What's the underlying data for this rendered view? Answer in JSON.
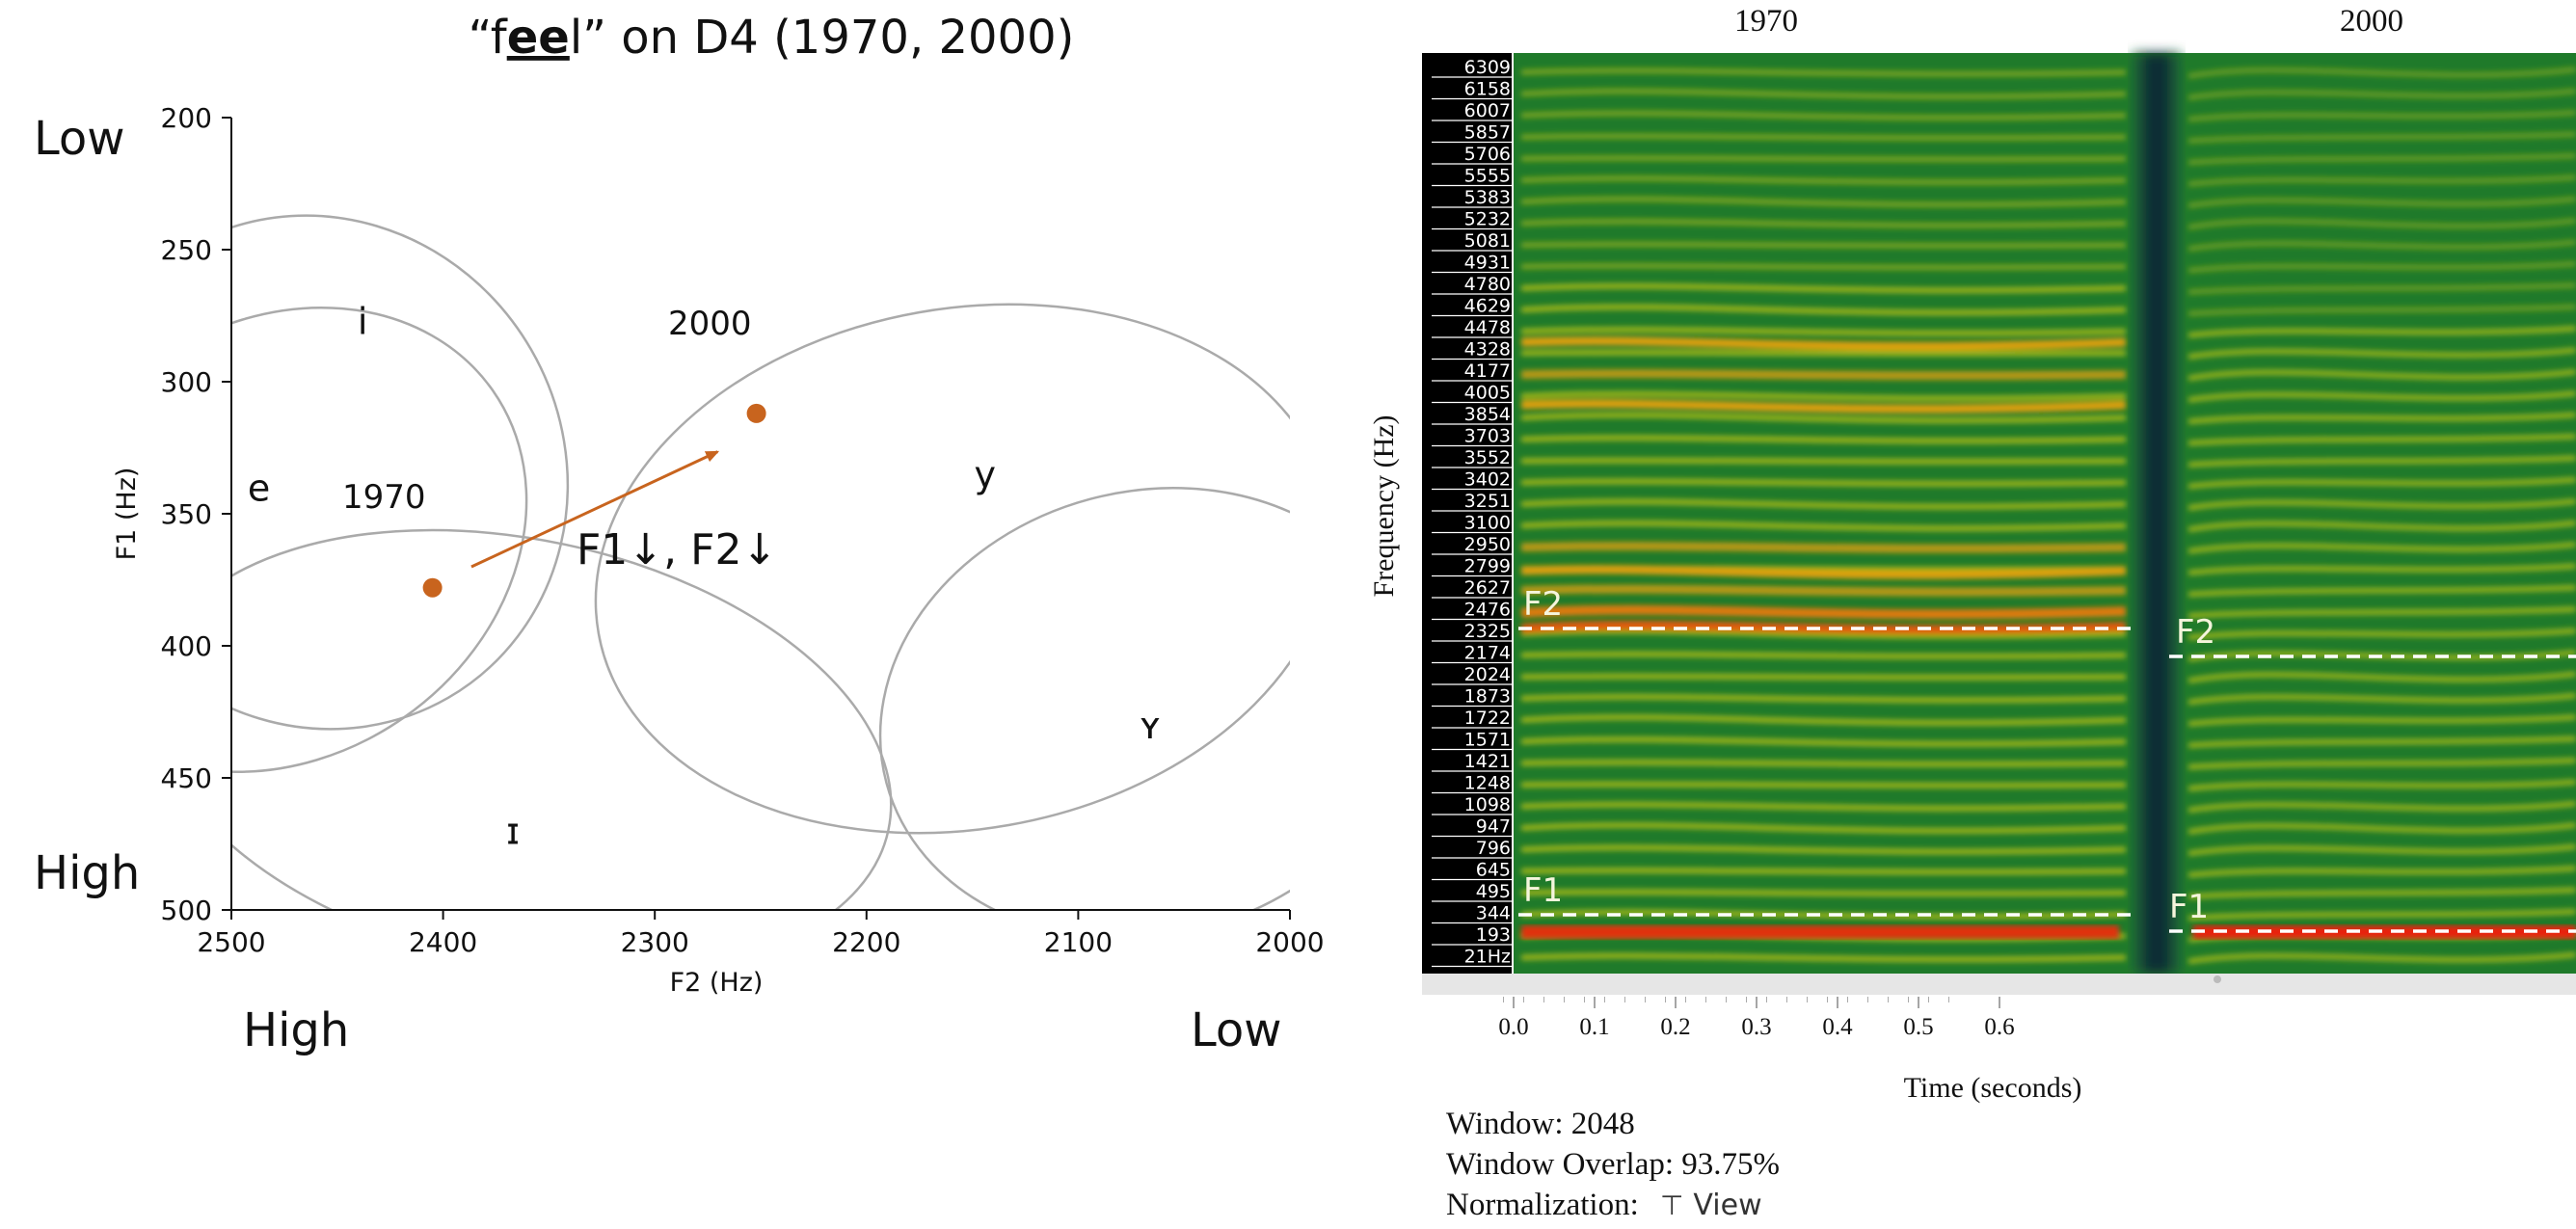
{
  "left": {
    "title_parts": {
      "prefix": "“f",
      "bold": "ee",
      "suffix": "l” on D4 (1970, 2000)"
    },
    "corner_words": {
      "top_left": "Low",
      "left_bottom": "High",
      "bottom_left": "High",
      "bottom_right": "Low"
    },
    "annotations": {
      "label_2000": "2000",
      "label_1970": "1970",
      "arrow_text": "F1↓, F2↓"
    },
    "vowels": [
      "i",
      "e",
      "y",
      "ɪ",
      "ʏ"
    ],
    "arrow_color": "#c8641e",
    "ellipse_color": "#aaaaaa"
  },
  "chart_data": [
    {
      "type": "scatter",
      "title": "“feel” on D4 (1970, 2000)",
      "xlabel": "F2 (Hz)",
      "ylabel": "F1 (Hz)",
      "xlim": [
        2500,
        2000
      ],
      "ylim": [
        500,
        200
      ],
      "x_ticks": [
        "2500",
        "2400",
        "2300",
        "2200",
        "2100",
        "2000"
      ],
      "y_ticks": [
        "200",
        "250",
        "300",
        "350",
        "400",
        "450",
        "500"
      ],
      "x_inverted": true,
      "y_inverted": true,
      "points": [
        {
          "label": "1970",
          "F2": 2405,
          "F1": 378
        },
        {
          "label": "2000",
          "F2": 2252,
          "F1": 312
        }
      ],
      "vowel_labels": [
        {
          "text": "i",
          "F2": 2438,
          "F1": 282
        },
        {
          "text": "e",
          "F2": 2487,
          "F1": 345
        },
        {
          "text": "y",
          "F2": 2144,
          "F1": 340
        },
        {
          "text": "ɪ",
          "F2": 2367,
          "F1": 475
        },
        {
          "text": "ʏ",
          "F2": 2066,
          "F1": 435
        }
      ]
    },
    {
      "type": "heatmap",
      "kind": "spectrogram",
      "xlabel": "Time (seconds)",
      "ylabel": "Frequency (Hz)",
      "x_ticks": [
        "0.0",
        "0.1",
        "0.2",
        "0.3",
        "0.4",
        "0.5",
        "0.6"
      ],
      "y_ticks": [
        "6309",
        "6158",
        "6007",
        "5857",
        "5706",
        "5555",
        "5383",
        "5232",
        "5081",
        "4931",
        "4780",
        "4629",
        "4478",
        "4328",
        "4177",
        "4005",
        "3854",
        "3703",
        "3552",
        "3402",
        "3251",
        "3100",
        "2950",
        "2799",
        "2627",
        "2476",
        "2325",
        "2174",
        "2024",
        "1873",
        "1722",
        "1571",
        "1421",
        "1248",
        "1098",
        "947",
        "796",
        "645",
        "495",
        "344",
        "193",
        "21Hz"
      ],
      "segment_labels": [
        "1970",
        "2000"
      ],
      "formant_markers": [
        {
          "name": "F2",
          "segment": "1970",
          "freq_hz": 2400
        },
        {
          "name": "F2",
          "segment": "2000",
          "freq_hz": 2250
        },
        {
          "name": "F1",
          "segment": "1970",
          "freq_hz": 344
        },
        {
          "name": "F1",
          "segment": "2000",
          "freq_hz": 250
        }
      ]
    }
  ],
  "right": {
    "headers": [
      "1970",
      "2000"
    ],
    "ylabel": "Frequency (Hz)",
    "xlabel": "Time (seconds)",
    "formant_tags": {
      "f2_a": "F2",
      "f2_b": "F2",
      "f1_a": "F1",
      "f1_b": "F1"
    }
  },
  "info": {
    "window": "Window: 2048",
    "overlap": "Window Overlap: 93.75%",
    "normalization": "Normalization:",
    "view_button": "View",
    "view_symbol": "⊤"
  }
}
